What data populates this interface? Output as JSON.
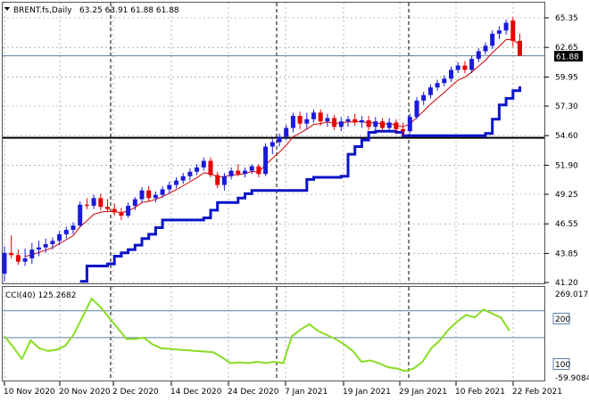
{
  "header": {
    "symbol": "BRENT.fs,Daily",
    "ohlc": "63.25 63.91 61.88 61.88"
  },
  "price_axis": {
    "ticks": [
      "65.35",
      "62.65",
      "59.95",
      "57.30",
      "54.60",
      "51.90",
      "49.25",
      "46.55",
      "43.85",
      "41.20"
    ],
    "current_price": "61.88"
  },
  "cci_panel": {
    "title": "CCI(40) 125.2682",
    "axis_max": "269.0172",
    "axis_min": "-59.9084",
    "level_200": "200",
    "level_100": "100"
  },
  "date_axis": {
    "ticks": [
      "10 Nov 2020",
      "20 Nov 2020",
      "2 Dec 2020",
      "14 Dec 2020",
      "24 Dec 2020",
      "7 Jan 2021",
      "19 Jan 2021",
      "29 Jan 2021",
      "10 Feb 2021",
      "22 Feb 2021"
    ]
  },
  "colors": {
    "bull": "#1a1adb",
    "bear": "#e60000",
    "ma_thin": "#cc0000",
    "ma_thick": "#0a14c8",
    "cci": "#88dd22",
    "level_line": "#5a7fa8",
    "grid": "#888888"
  },
  "chart_data": {
    "type": "candlestick",
    "price_range": [
      41.2,
      65.35
    ],
    "support_level": 54.4,
    "candles": [
      {
        "o": 42.0,
        "h": 44.5,
        "l": 41.3,
        "c": 43.9
      },
      {
        "o": 43.9,
        "h": 45.5,
        "l": 43.4,
        "c": 43.7
      },
      {
        "o": 43.7,
        "h": 44.2,
        "l": 42.8,
        "c": 43.1
      },
      {
        "o": 43.1,
        "h": 44.3,
        "l": 42.7,
        "c": 43.4
      },
      {
        "o": 43.4,
        "h": 44.8,
        "l": 42.9,
        "c": 44.2
      },
      {
        "o": 44.2,
        "h": 45.0,
        "l": 43.6,
        "c": 44.4
      },
      {
        "o": 44.4,
        "h": 45.2,
        "l": 43.9,
        "c": 44.7
      },
      {
        "o": 44.7,
        "h": 45.3,
        "l": 44.2,
        "c": 45.0
      },
      {
        "o": 45.0,
        "h": 45.9,
        "l": 44.6,
        "c": 45.6
      },
      {
        "o": 45.6,
        "h": 46.3,
        "l": 45.2,
        "c": 46.0
      },
      {
        "o": 46.0,
        "h": 46.7,
        "l": 45.6,
        "c": 46.4
      },
      {
        "o": 46.4,
        "h": 48.6,
        "l": 46.2,
        "c": 48.3
      },
      {
        "o": 48.3,
        "h": 48.9,
        "l": 47.9,
        "c": 48.2
      },
      {
        "o": 48.2,
        "h": 49.2,
        "l": 47.9,
        "c": 48.9
      },
      {
        "o": 48.9,
        "h": 49.3,
        "l": 47.8,
        "c": 48.1
      },
      {
        "o": 48.1,
        "h": 48.8,
        "l": 47.6,
        "c": 47.9
      },
      {
        "o": 47.9,
        "h": 48.4,
        "l": 47.3,
        "c": 47.6
      },
      {
        "o": 47.6,
        "h": 48.0,
        "l": 46.9,
        "c": 47.3
      },
      {
        "o": 47.3,
        "h": 48.5,
        "l": 47.1,
        "c": 48.2
      },
      {
        "o": 48.2,
        "h": 49.0,
        "l": 47.8,
        "c": 48.8
      },
      {
        "o": 48.8,
        "h": 49.9,
        "l": 48.5,
        "c": 49.6
      },
      {
        "o": 49.6,
        "h": 50.0,
        "l": 48.6,
        "c": 48.9
      },
      {
        "o": 48.9,
        "h": 49.5,
        "l": 48.5,
        "c": 49.2
      },
      {
        "o": 49.2,
        "h": 50.0,
        "l": 48.9,
        "c": 49.7
      },
      {
        "o": 49.7,
        "h": 50.4,
        "l": 49.3,
        "c": 50.1
      },
      {
        "o": 50.1,
        "h": 50.8,
        "l": 49.8,
        "c": 50.5
      },
      {
        "o": 50.5,
        "h": 51.2,
        "l": 50.2,
        "c": 50.9
      },
      {
        "o": 50.9,
        "h": 51.6,
        "l": 50.5,
        "c": 51.3
      },
      {
        "o": 51.3,
        "h": 52.0,
        "l": 51.0,
        "c": 51.7
      },
      {
        "o": 51.7,
        "h": 52.6,
        "l": 51.4,
        "c": 52.3
      },
      {
        "o": 52.3,
        "h": 52.6,
        "l": 50.8,
        "c": 51.0
      },
      {
        "o": 51.0,
        "h": 51.3,
        "l": 49.8,
        "c": 50.1
      },
      {
        "o": 50.1,
        "h": 51.2,
        "l": 49.6,
        "c": 50.9
      },
      {
        "o": 50.9,
        "h": 51.7,
        "l": 50.6,
        "c": 51.4
      },
      {
        "o": 51.4,
        "h": 52.0,
        "l": 50.9,
        "c": 51.1
      },
      {
        "o": 51.1,
        "h": 51.7,
        "l": 50.8,
        "c": 51.4
      },
      {
        "o": 51.4,
        "h": 52.0,
        "l": 51.1,
        "c": 51.8
      },
      {
        "o": 51.8,
        "h": 52.0,
        "l": 50.8,
        "c": 51.1
      },
      {
        "o": 51.1,
        "h": 53.9,
        "l": 50.9,
        "c": 53.6
      },
      {
        "o": 53.6,
        "h": 54.3,
        "l": 52.9,
        "c": 54.0
      },
      {
        "o": 54.0,
        "h": 54.8,
        "l": 53.6,
        "c": 54.5
      },
      {
        "o": 54.5,
        "h": 55.6,
        "l": 54.2,
        "c": 55.3
      },
      {
        "o": 55.3,
        "h": 56.7,
        "l": 54.9,
        "c": 56.4
      },
      {
        "o": 56.4,
        "h": 56.8,
        "l": 55.2,
        "c": 55.7
      },
      {
        "o": 55.7,
        "h": 56.7,
        "l": 55.2,
        "c": 56.1
      },
      {
        "o": 56.1,
        "h": 57.0,
        "l": 55.8,
        "c": 56.7
      },
      {
        "o": 56.7,
        "h": 57.0,
        "l": 55.5,
        "c": 55.9
      },
      {
        "o": 55.9,
        "h": 56.6,
        "l": 55.4,
        "c": 56.2
      },
      {
        "o": 56.2,
        "h": 56.5,
        "l": 55.1,
        "c": 55.4
      },
      {
        "o": 55.4,
        "h": 56.3,
        "l": 55.0,
        "c": 55.9
      },
      {
        "o": 55.9,
        "h": 56.4,
        "l": 55.4,
        "c": 56.1
      },
      {
        "o": 56.1,
        "h": 56.6,
        "l": 55.5,
        "c": 55.8
      },
      {
        "o": 55.8,
        "h": 56.4,
        "l": 55.3,
        "c": 56.0
      },
      {
        "o": 56.0,
        "h": 56.4,
        "l": 55.1,
        "c": 55.4
      },
      {
        "o": 55.4,
        "h": 56.3,
        "l": 55.1,
        "c": 55.9
      },
      {
        "o": 55.9,
        "h": 56.2,
        "l": 55.0,
        "c": 55.3
      },
      {
        "o": 55.3,
        "h": 56.2,
        "l": 55.1,
        "c": 55.8
      },
      {
        "o": 55.8,
        "h": 56.1,
        "l": 54.9,
        "c": 55.2
      },
      {
        "o": 55.2,
        "h": 55.8,
        "l": 54.6,
        "c": 55.0
      },
      {
        "o": 55.0,
        "h": 56.6,
        "l": 54.8,
        "c": 56.3
      },
      {
        "o": 56.3,
        "h": 58.1,
        "l": 56.1,
        "c": 57.8
      },
      {
        "o": 57.8,
        "h": 58.6,
        "l": 57.4,
        "c": 58.3
      },
      {
        "o": 58.3,
        "h": 59.3,
        "l": 58.0,
        "c": 59.0
      },
      {
        "o": 59.0,
        "h": 59.7,
        "l": 58.7,
        "c": 59.4
      },
      {
        "o": 59.4,
        "h": 60.1,
        "l": 59.1,
        "c": 59.8
      },
      {
        "o": 59.8,
        "h": 60.9,
        "l": 59.5,
        "c": 60.6
      },
      {
        "o": 60.6,
        "h": 61.3,
        "l": 60.3,
        "c": 61.0
      },
      {
        "o": 61.0,
        "h": 61.4,
        "l": 60.3,
        "c": 60.6
      },
      {
        "o": 60.6,
        "h": 61.9,
        "l": 60.3,
        "c": 61.6
      },
      {
        "o": 61.6,
        "h": 62.6,
        "l": 61.3,
        "c": 62.3
      },
      {
        "o": 62.3,
        "h": 63.1,
        "l": 62.0,
        "c": 62.8
      },
      {
        "o": 62.8,
        "h": 64.2,
        "l": 62.5,
        "c": 63.9
      },
      {
        "o": 63.9,
        "h": 64.6,
        "l": 63.4,
        "c": 64.2
      },
      {
        "o": 64.2,
        "h": 65.2,
        "l": 63.8,
        "c": 64.9
      },
      {
        "o": 65.1,
        "h": 65.4,
        "l": 62.7,
        "c": 63.25
      },
      {
        "o": 63.25,
        "h": 63.91,
        "l": 61.88,
        "c": 61.88
      }
    ],
    "cci_range": [
      -59.9084,
      269.0172
    ],
    "cci_values": [
      105,
      65,
      20,
      90,
      60,
      50,
      55,
      70,
      115,
      180,
      245,
      215,
      175,
      135,
      95,
      95,
      100,
      75,
      60,
      58,
      55,
      53,
      50,
      48,
      45,
      25,
      5,
      8,
      5,
      10,
      5,
      10,
      5,
      105,
      130,
      150,
      125,
      110,
      95,
      75,
      50,
      10,
      15,
      5,
      -10,
      -15,
      -25,
      -15,
      10,
      60,
      90,
      130,
      160,
      185,
      175,
      205,
      190,
      175,
      125
    ]
  }
}
